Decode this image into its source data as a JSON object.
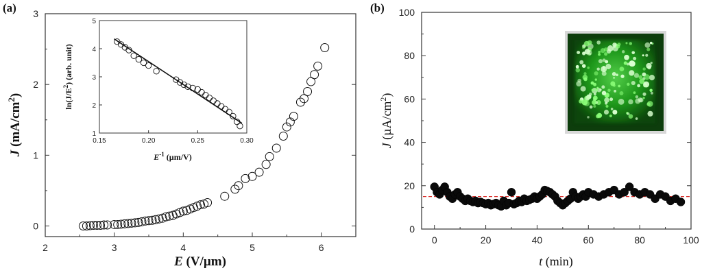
{
  "chart_data": [
    {
      "panel_label": "(a)",
      "type": "scatter",
      "xlabel_var": "E",
      "xlabel_unit": " (V/µm)",
      "ylabel_var": "J",
      "ylabel_unit": " (mA/cm",
      "ylabel_sup": "2",
      "ylabel_close": ")",
      "xlim": [
        2,
        6.5
      ],
      "ylim": [
        -0.15,
        3
      ],
      "xticks": [
        "2",
        "3",
        "4",
        "5",
        "6"
      ],
      "yticks": [
        "0",
        "1",
        "2",
        "3"
      ],
      "marker": "open-circle",
      "series": [
        {
          "name": "J-E",
          "x": [
            2.55,
            2.6,
            2.65,
            2.7,
            2.75,
            2.8,
            2.85,
            2.9,
            3.0,
            3.05,
            3.1,
            3.15,
            3.2,
            3.25,
            3.3,
            3.35,
            3.4,
            3.45,
            3.5,
            3.55,
            3.6,
            3.65,
            3.7,
            3.75,
            3.8,
            3.85,
            3.9,
            3.95,
            4.0,
            4.05,
            4.1,
            4.15,
            4.2,
            4.25,
            4.3,
            4.35,
            4.6,
            4.75,
            4.8,
            4.9,
            5.0,
            5.1,
            5.2,
            5.25,
            5.35,
            5.45,
            5.5,
            5.55,
            5.6,
            5.7,
            5.75,
            5.8,
            5.85,
            5.9,
            5.95,
            6.05
          ],
          "y": [
            0.0,
            0.0,
            0.005,
            0.01,
            0.01,
            0.01,
            0.015,
            0.015,
            0.02,
            0.02,
            0.025,
            0.03,
            0.035,
            0.04,
            0.045,
            0.05,
            0.06,
            0.07,
            0.075,
            0.08,
            0.09,
            0.1,
            0.11,
            0.13,
            0.14,
            0.15,
            0.17,
            0.19,
            0.21,
            0.22,
            0.24,
            0.26,
            0.28,
            0.3,
            0.31,
            0.33,
            0.42,
            0.52,
            0.57,
            0.67,
            0.7,
            0.76,
            0.87,
            0.98,
            1.1,
            1.27,
            1.4,
            1.47,
            1.55,
            1.75,
            1.8,
            1.9,
            2.04,
            2.14,
            2.26,
            2.52
          ]
        }
      ],
      "inset": {
        "type": "scatter",
        "xlabel": "E",
        "xlabel_sup": "-1",
        "xlabel_unit": " (µm/V)",
        "ylabel": "ln(J/E",
        "ylabel_sup": "2",
        "ylabel_close": ") (arb. unit)",
        "xlim": [
          0.15,
          0.3
        ],
        "ylim": [
          1,
          5
        ],
        "xticks": [
          "0.15",
          "0.20",
          "0.25",
          "0.30"
        ],
        "yticks": [
          "1",
          "2",
          "3",
          "4",
          "5"
        ],
        "fit_line": {
          "x": [
            0.165,
            0.295
          ],
          "y": [
            4.35,
            1.35
          ]
        },
        "points": {
          "x": [
            0.168,
            0.172,
            0.176,
            0.18,
            0.185,
            0.19,
            0.195,
            0.2,
            0.208,
            0.228,
            0.232,
            0.236,
            0.24,
            0.245,
            0.25,
            0.254,
            0.258,
            0.262,
            0.266,
            0.27,
            0.274,
            0.278,
            0.282,
            0.286,
            0.29,
            0.293
          ],
          "y": [
            4.25,
            4.15,
            4.05,
            3.95,
            3.75,
            3.62,
            3.5,
            3.4,
            3.2,
            2.9,
            2.8,
            2.72,
            2.65,
            2.6,
            2.55,
            2.45,
            2.35,
            2.25,
            2.15,
            2.05,
            1.95,
            1.85,
            1.75,
            1.6,
            1.4,
            1.25
          ]
        }
      }
    },
    {
      "panel_label": "(b)",
      "type": "scatter",
      "xlabel_var": "t",
      "xlabel_unit": " (min)",
      "ylabel_var": "J",
      "ylabel_unit": " (µA/cm",
      "ylabel_sup": "2",
      "ylabel_close": ")",
      "xlim": [
        -5,
        100
      ],
      "ylim": [
        0,
        100
      ],
      "xticks": [
        "0",
        "20",
        "40",
        "60",
        "80",
        "100"
      ],
      "yticks": [
        "0",
        "20",
        "40",
        "60",
        "80",
        "100"
      ],
      "marker": "filled-circle",
      "reference_line": {
        "y": 15,
        "color": "#d9302c",
        "style": "dashed"
      },
      "series": [
        {
          "name": "J-t",
          "x": [
            0,
            1,
            2,
            3,
            4,
            5,
            6,
            7,
            8,
            9,
            10,
            11,
            12,
            13,
            14,
            15,
            16,
            17,
            18,
            19,
            20,
            21,
            22,
            23,
            24,
            25,
            26,
            27,
            28,
            29,
            30,
            31,
            32,
            33,
            34,
            35,
            36,
            37,
            38,
            39,
            40,
            41,
            42,
            43,
            44,
            45,
            46,
            47,
            48,
            49,
            50,
            51,
            52,
            53,
            54,
            55,
            56,
            57,
            58,
            59,
            60,
            62,
            64,
            66,
            68,
            70,
            72,
            74,
            76,
            78,
            80,
            82,
            84,
            86,
            88,
            90,
            92,
            94,
            96
          ],
          "y": [
            19.5,
            17,
            16,
            18,
            19.5,
            17,
            15,
            14,
            16,
            17,
            15,
            14,
            13,
            14,
            13,
            12.5,
            13,
            12,
            12.5,
            12,
            11.5,
            12,
            11,
            11.5,
            12,
            11,
            10.5,
            13,
            11,
            12,
            17,
            11.5,
            12,
            13,
            12.5,
            14,
            13,
            13.5,
            14,
            15,
            14,
            15,
            16,
            18,
            17.5,
            17,
            16,
            15,
            13,
            12,
            11,
            12,
            13,
            14,
            17,
            15,
            14,
            15,
            16,
            15,
            17,
            16,
            15,
            16,
            17,
            18,
            16,
            17,
            19.5,
            17,
            16,
            17,
            16,
            14,
            16,
            15,
            13,
            14,
            12.5
          ]
        }
      ],
      "inset_image": {
        "description": "green emission pattern",
        "color": "#1fb31c"
      }
    }
  ]
}
